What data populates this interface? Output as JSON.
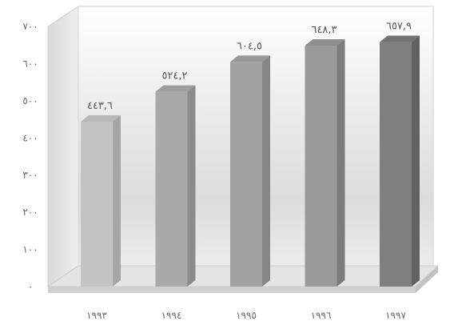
{
  "chart_data": {
    "type": "bar",
    "categories": [
      "١٩٩٣",
      "١٩٩٤",
      "١٩٩٥",
      "١٩٩٦",
      "١٩٩٧"
    ],
    "values": [
      443.6,
      524.2,
      604.5,
      648.3,
      657.9
    ],
    "data_labels": [
      "٤٤٣,٦",
      "٥٢٤,٢",
      "٦٠٤,٥",
      "٦٤٨,٣",
      "٦٥٧,٩"
    ],
    "y_ticks": [
      0,
      100,
      200,
      300,
      400,
      500,
      600,
      700
    ],
    "y_tick_labels": [
      "٠",
      "١٠٠",
      "٢٠٠",
      "٣٠٠",
      "٤٠٠",
      "٥٠٠",
      "٦٠٠",
      "٧٠٠"
    ],
    "ylim": [
      0,
      700
    ],
    "title": "",
    "xlabel": "",
    "ylabel": "",
    "grid": false,
    "legend": "none",
    "style": "3d-bars",
    "colors": {
      "bars": [
        "#c4c4c4",
        "#a9a9a9",
        "#a3a3a3",
        "#9a9a9a",
        "#7f7f7f"
      ],
      "frame": "#e8e8e8",
      "frame_edge": "#c8c8c8",
      "floor": "#e0e0e0"
    }
  }
}
